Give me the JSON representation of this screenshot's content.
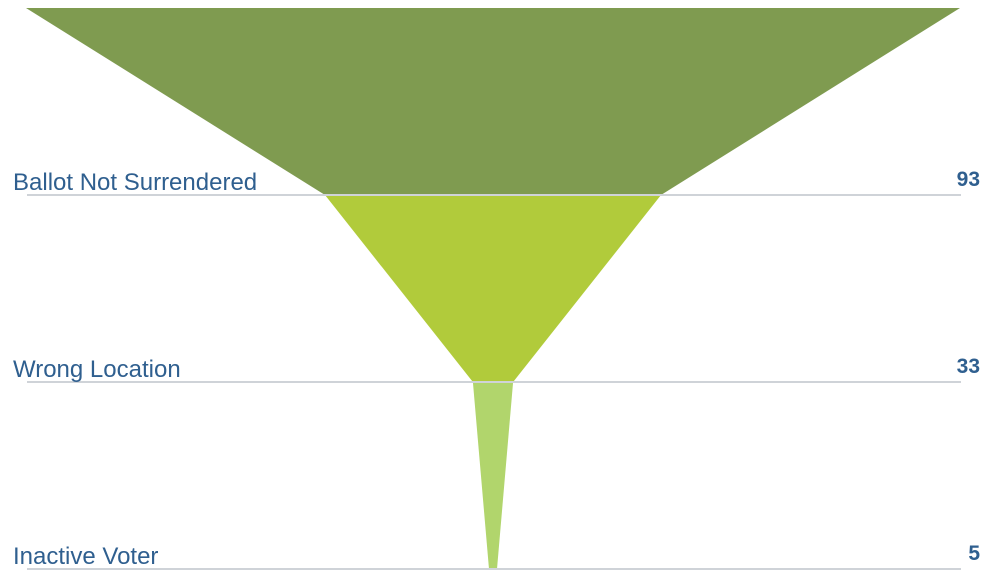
{
  "chart_data": {
    "type": "funnel",
    "stages": [
      {
        "label": "Ballot Not Surrendered",
        "value": 93,
        "color": "#7f9b50"
      },
      {
        "label": "Wrong Location",
        "value": 33,
        "color": "#b1cb3b"
      },
      {
        "label": "Inactive Voter",
        "value": 5,
        "color": "#b1d56c"
      }
    ],
    "label_color": "#2f5f8f",
    "line_color": "#cfd3d8"
  }
}
